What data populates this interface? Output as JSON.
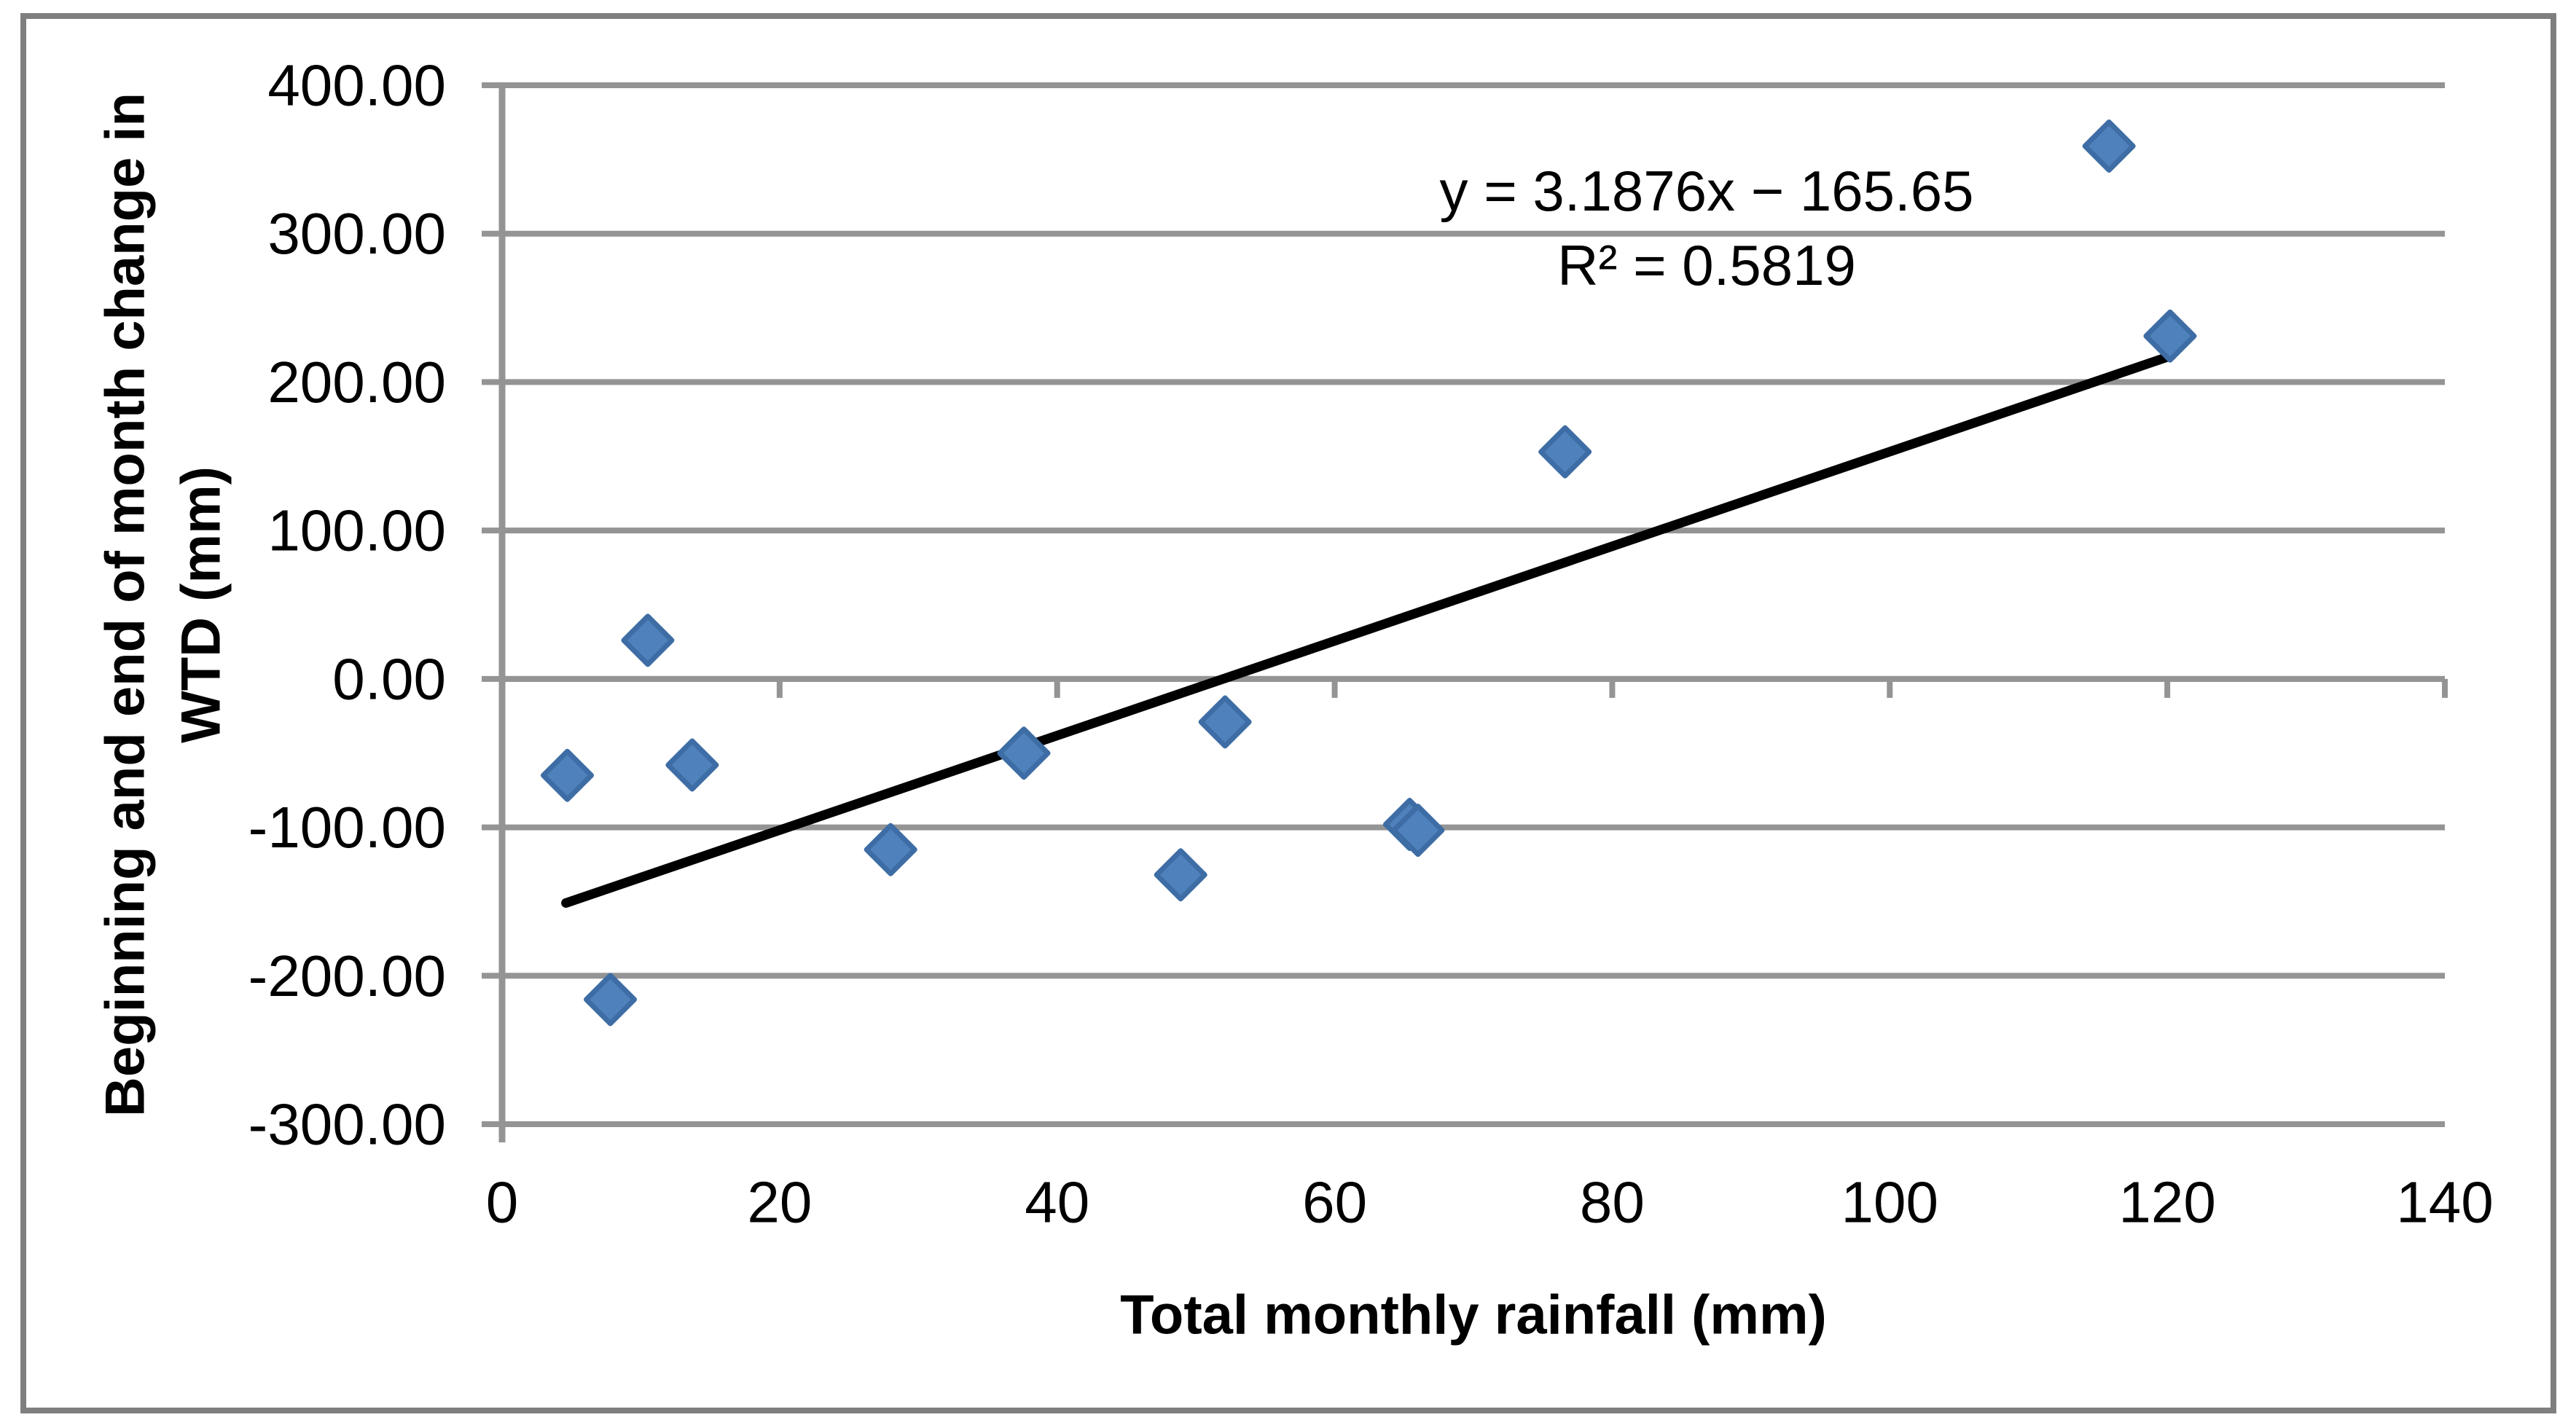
{
  "chart_data": {
    "type": "scatter",
    "title": "",
    "xlabel": "Total monthly rainfall (mm)",
    "ylabel_line1": "Beginning and end of month change in",
    "ylabel_line2": "WTD (mm)",
    "xlim": [
      0,
      140
    ],
    "ylim": [
      -300,
      400
    ],
    "x_ticks": [
      0,
      20,
      40,
      60,
      80,
      100,
      120,
      140
    ],
    "x_tick_labels": [
      "0",
      "20",
      "40",
      "60",
      "80",
      "100",
      "120",
      "140"
    ],
    "y_ticks": [
      400,
      300,
      200,
      100,
      0,
      -100,
      -200,
      -300
    ],
    "y_tick_labels": [
      "400.00",
      "300.00",
      "200.00",
      "100.00",
      "0.00",
      "-100.00",
      "-200.00",
      "-300.00"
    ],
    "grid": true,
    "legend_position": "none",
    "marker_shape": "diamond",
    "points": [
      [
        4.7,
        -65
      ],
      [
        7.8,
        -216
      ],
      [
        10.5,
        26
      ],
      [
        13.7,
        -58
      ],
      [
        28.0,
        -115
      ],
      [
        37.6,
        -50
      ],
      [
        48.9,
        -132
      ],
      [
        52.1,
        -29
      ],
      [
        65.4,
        -98
      ],
      [
        66.0,
        -102
      ],
      [
        76.6,
        153
      ],
      [
        115.8,
        359
      ],
      [
        120.2,
        231
      ]
    ],
    "trendline": {
      "slope": 3.1876,
      "intercept": -165.65,
      "x_start": 4.6,
      "x_end": 120.3
    },
    "annotation": {
      "equation": "y = 3.1876x − 165.65",
      "r_squared": "R² = 0.5819"
    },
    "colors": {
      "marker_fill": "#4F81BD",
      "marker_stroke": "#3E6DA5",
      "gridline": "#949494",
      "axis_line": "#949494",
      "trendline": "#000000",
      "text": "#000000",
      "chart_border": "#7F7F7F",
      "background": "#FFFFFF"
    }
  }
}
